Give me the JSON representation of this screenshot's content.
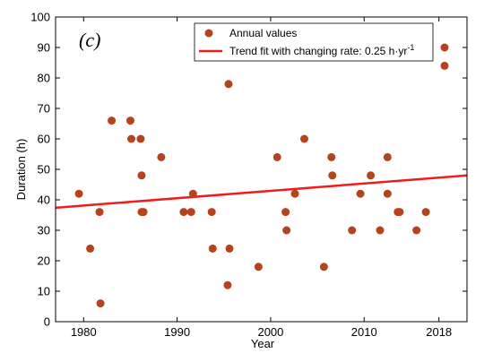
{
  "chart_data": {
    "type": "scatter",
    "panel_label": "(c)",
    "xlabel": "Year",
    "ylabel": "Duration (h)",
    "xlim": [
      1977,
      2021
    ],
    "ylim": [
      0,
      100
    ],
    "x_ticks": [
      1980,
      1990,
      2000,
      2010,
      2018
    ],
    "y_ticks": [
      0,
      10,
      20,
      30,
      40,
      50,
      60,
      70,
      80,
      90,
      100
    ],
    "grid": false,
    "legend_placement": "top-right",
    "series": [
      {
        "name": "Annual values",
        "color": "#b5431b",
        "points": [
          {
            "x": 1979.5,
            "y": 42
          },
          {
            "x": 1980.7,
            "y": 24
          },
          {
            "x": 1981.7,
            "y": 36
          },
          {
            "x": 1981.8,
            "y": 6
          },
          {
            "x": 1983,
            "y": 66
          },
          {
            "x": 1985,
            "y": 66
          },
          {
            "x": 1985.1,
            "y": 60
          },
          {
            "x": 1986.1,
            "y": 60
          },
          {
            "x": 1986.2,
            "y": 48
          },
          {
            "x": 1986.2,
            "y": 36
          },
          {
            "x": 1986.4,
            "y": 36
          },
          {
            "x": 1988.3,
            "y": 54
          },
          {
            "x": 1990.7,
            "y": 36
          },
          {
            "x": 1991.5,
            "y": 36
          },
          {
            "x": 1991.7,
            "y": 42
          },
          {
            "x": 1993.7,
            "y": 36
          },
          {
            "x": 1993.8,
            "y": 24
          },
          {
            "x": 1995.4,
            "y": 12
          },
          {
            "x": 1995.5,
            "y": 78
          },
          {
            "x": 1995.6,
            "y": 24
          },
          {
            "x": 1998.7,
            "y": 18
          },
          {
            "x": 2000.7,
            "y": 54
          },
          {
            "x": 2001.6,
            "y": 36
          },
          {
            "x": 2001.7,
            "y": 30
          },
          {
            "x": 2002.6,
            "y": 42
          },
          {
            "x": 2003.6,
            "y": 60
          },
          {
            "x": 2005.7,
            "y": 18
          },
          {
            "x": 2006.5,
            "y": 54
          },
          {
            "x": 2006.6,
            "y": 48
          },
          {
            "x": 2008.7,
            "y": 30
          },
          {
            "x": 2009.6,
            "y": 42
          },
          {
            "x": 2010.7,
            "y": 48
          },
          {
            "x": 2011.7,
            "y": 30
          },
          {
            "x": 2012.5,
            "y": 54
          },
          {
            "x": 2012.5,
            "y": 42
          },
          {
            "x": 2013.6,
            "y": 36
          },
          {
            "x": 2013.8,
            "y": 36
          },
          {
            "x": 2015.6,
            "y": 30
          },
          {
            "x": 2016.6,
            "y": 36
          },
          {
            "x": 2018.6,
            "y": 90
          },
          {
            "x": 2018.6,
            "y": 84
          }
        ]
      },
      {
        "name": "Trend fit with changing rate: 0.25 h·yr",
        "name_superscript": "-1",
        "type": "line",
        "color": "#ee1c1c",
        "x": [
          1977,
          2021
        ],
        "y": [
          37.4,
          48.0
        ]
      }
    ]
  }
}
